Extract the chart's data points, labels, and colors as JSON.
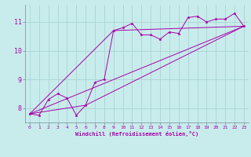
{
  "xlabel": "Windchill (Refroidissement éolien,°C)",
  "bg_color": "#c8ecec",
  "grid_color": "#aad4d4",
  "line_color": "#aa00aa",
  "xlim": [
    -0.5,
    23.5
  ],
  "ylim": [
    7.5,
    11.6
  ],
  "xticks": [
    0,
    1,
    2,
    3,
    4,
    5,
    6,
    7,
    8,
    9,
    10,
    11,
    12,
    13,
    14,
    15,
    16,
    17,
    18,
    19,
    20,
    21,
    22,
    23
  ],
  "yticks": [
    8,
    9,
    10,
    11
  ],
  "series1_x": [
    0,
    1,
    2,
    3,
    4,
    5,
    6,
    7,
    8,
    9,
    10,
    11,
    12,
    13,
    14,
    15,
    16,
    17,
    18,
    19,
    20,
    21,
    22,
    23
  ],
  "series1_y": [
    7.8,
    7.75,
    8.3,
    8.5,
    8.35,
    7.75,
    8.1,
    8.9,
    9.0,
    10.7,
    10.8,
    10.95,
    10.55,
    10.55,
    10.4,
    10.65,
    10.6,
    11.15,
    11.2,
    11.0,
    11.1,
    11.1,
    11.3,
    10.85
  ],
  "series2_x": [
    0,
    23
  ],
  "series2_y": [
    7.8,
    10.85
  ],
  "series3_x": [
    0,
    6,
    23
  ],
  "series3_y": [
    7.8,
    8.1,
    10.85
  ],
  "series4_x": [
    0,
    9,
    23
  ],
  "series4_y": [
    7.8,
    10.7,
    10.85
  ]
}
